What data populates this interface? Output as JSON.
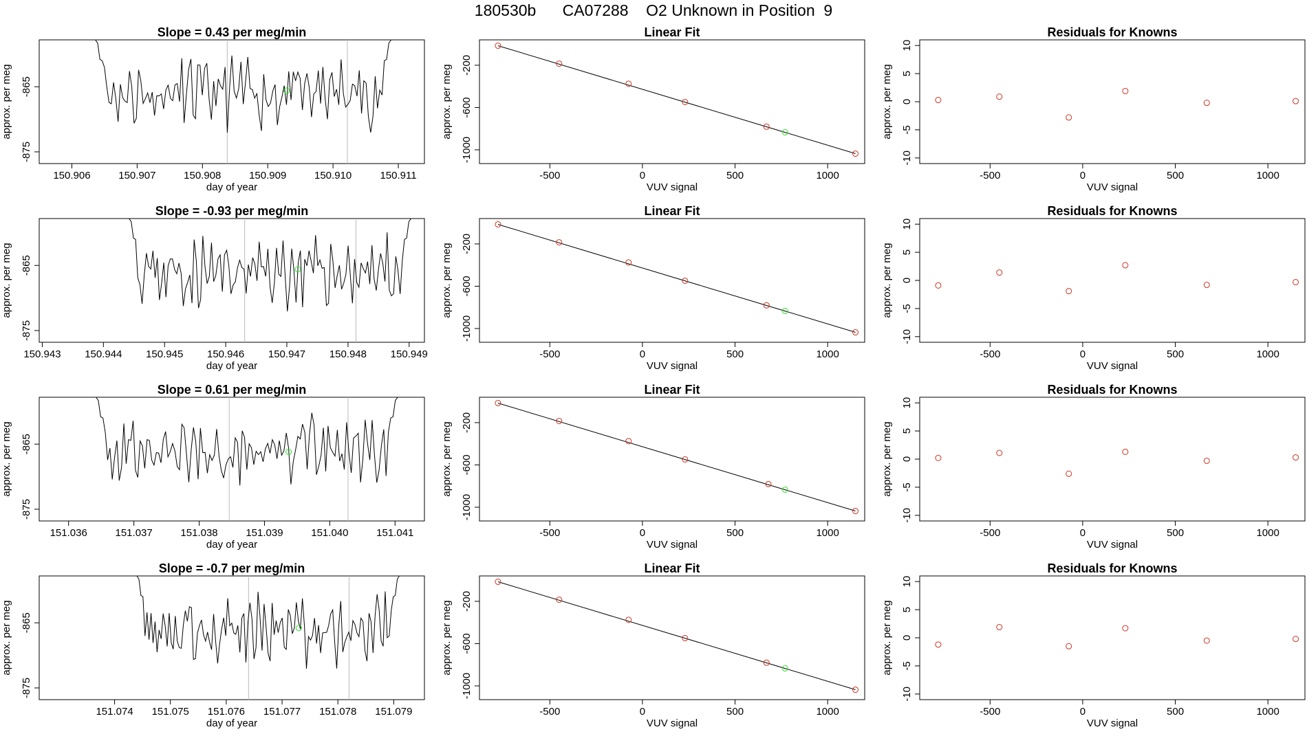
{
  "title": "180530b      CA07288    O2 Unknown in Position  9",
  "colors": {
    "known_point": "#cc3322",
    "unknown_point": "#33dd33",
    "line": "#000000",
    "vline": "#bbbbbb"
  },
  "chart_data": [
    {
      "type": "line",
      "title": "Slope =  0.43  per meg/min",
      "xlabel": "day of year",
      "ylabel": "approx. per meg",
      "xlim": [
        150.9055,
        150.9114
      ],
      "ylim": [
        -876.8,
        -857.8
      ],
      "xticks": [
        "150.906",
        "150.907",
        "150.908",
        "150.909",
        "150.910",
        "150.911"
      ],
      "yticks": [
        "-865",
        "-875"
      ],
      "ytick_values": [
        -865,
        -875
      ],
      "x_start": 150.90636,
      "x_end": 150.91089,
      "vlines": [
        150.90838,
        150.91022
      ],
      "unknown_point": [
        150.90929,
        -865.6
      ],
      "seed": 11
    },
    {
      "type": "line",
      "title": "Slope =  -0.93  per meg/min",
      "xlabel": "day of year",
      "ylabel": "approx. per meg",
      "xlim": [
        150.94295,
        150.94925
      ],
      "ylim": [
        -876.8,
        -857.8
      ],
      "xticks": [
        "150.943",
        "150.944",
        "150.945",
        "150.946",
        "150.947",
        "150.948",
        "150.949"
      ],
      "yticks": [
        "-865",
        "-875"
      ],
      "ytick_values": [
        -865,
        -875
      ],
      "x_start": 150.94442,
      "x_end": 150.94903,
      "vlines": [
        150.94631,
        150.94813
      ],
      "unknown_point": [
        150.94718,
        -865.6
      ],
      "seed": 23
    },
    {
      "type": "line",
      "title": "Slope =  0.61  per meg/min",
      "xlabel": "day of year",
      "ylabel": "approx. per meg",
      "xlim": [
        151.03555,
        151.04145
      ],
      "ylim": [
        -876.8,
        -857.8
      ],
      "xticks": [
        "151.036",
        "151.037",
        "151.038",
        "151.039",
        "151.040",
        "151.041"
      ],
      "yticks": [
        "-865",
        "-875"
      ],
      "ytick_values": [
        -865,
        -875
      ],
      "x_start": 151.03642,
      "x_end": 151.04104,
      "vlines": [
        151.03846,
        151.04028
      ],
      "unknown_point": [
        151.03937,
        -866.2
      ],
      "seed": 37
    },
    {
      "type": "line",
      "title": "Slope =  -0.7  per meg/min",
      "xlabel": "day of year",
      "ylabel": "approx. per meg",
      "xlim": [
        151.07265,
        151.07955
      ],
      "ylim": [
        -876.8,
        -857.8
      ],
      "xticks": [
        "151.074",
        "151.075",
        "151.076",
        "151.077",
        "151.078",
        "151.079"
      ],
      "yticks": [
        "-865",
        "-875"
      ],
      "ytick_values": [
        -865,
        -875
      ],
      "x_start": 151.0744,
      "x_end": 151.0791,
      "vlines": [
        151.0764,
        151.0782
      ],
      "unknown_point": [
        151.0773,
        -865.8
      ],
      "seed": 53
    },
    {
      "type": "scatter",
      "title": "Linear Fit",
      "xlabel": "VUV signal",
      "ylabel": "approx. per meg",
      "xlim": [
        -880,
        1200
      ],
      "ylim": [
        -1130,
        40
      ],
      "xticks": [
        "-500",
        "0",
        "500",
        "1000"
      ],
      "xtick_values": [
        -500,
        0,
        500,
        1000
      ],
      "yticks": [
        "-200",
        "-600",
        "-1000"
      ],
      "ytick_values": [
        -200,
        -600,
        -1000
      ],
      "known_x": [
        -780,
        -450,
        -75,
        230,
        670,
        1150
      ],
      "known_y": [
        -15,
        -185,
        -375,
        -548,
        -781,
        -1036
      ],
      "unknown": [
        770,
        -834
      ],
      "fit_line": [
        [
          -780,
          -15
        ],
        [
          1150,
          -1036
        ]
      ]
    },
    {
      "type": "scatter",
      "title": "Linear Fit",
      "xlabel": "VUV signal",
      "ylabel": "approx. per meg",
      "xlim": [
        -880,
        1200
      ],
      "ylim": [
        -1130,
        40
      ],
      "xticks": [
        "-500",
        "0",
        "500",
        "1000"
      ],
      "xtick_values": [
        -500,
        0,
        500,
        1000
      ],
      "yticks": [
        "-200",
        "-600",
        "-1000"
      ],
      "ytick_values": [
        -200,
        -600,
        -1000
      ],
      "known_x": [
        -780,
        -450,
        -75,
        230,
        670,
        1150
      ],
      "known_y": [
        -15,
        -185,
        -375,
        -548,
        -781,
        -1036
      ],
      "unknown": [
        770,
        -834
      ],
      "fit_line": [
        [
          -780,
          -15
        ],
        [
          1150,
          -1036
        ]
      ]
    },
    {
      "type": "scatter",
      "title": "Linear Fit",
      "xlabel": "VUV signal",
      "ylabel": "approx. per meg",
      "xlim": [
        -880,
        1200
      ],
      "ylim": [
        -1130,
        40
      ],
      "xticks": [
        "-500",
        "0",
        "500",
        "1000"
      ],
      "xtick_values": [
        -500,
        0,
        500,
        1000
      ],
      "yticks": [
        "-200",
        "-600",
        "-1000"
      ],
      "ytick_values": [
        -200,
        -600,
        -1000
      ],
      "known_x": [
        -780,
        -450,
        -75,
        230,
        680,
        1150
      ],
      "known_y": [
        -15,
        -185,
        -375,
        -548,
        -781,
        -1036
      ],
      "unknown": [
        770,
        -834
      ],
      "fit_line": [
        [
          -780,
          -15
        ],
        [
          1150,
          -1036
        ]
      ]
    },
    {
      "type": "scatter",
      "title": "Linear Fit",
      "xlabel": "VUV signal",
      "ylabel": "approx. per meg",
      "xlim": [
        -880,
        1200
      ],
      "ylim": [
        -1130,
        40
      ],
      "xticks": [
        "-500",
        "0",
        "500",
        "1000"
      ],
      "xtick_values": [
        -500,
        0,
        500,
        1000
      ],
      "yticks": [
        "-200",
        "-600",
        "-1000"
      ],
      "ytick_values": [
        -200,
        -600,
        -1000
      ],
      "known_x": [
        -780,
        -450,
        -75,
        230,
        670,
        1150
      ],
      "known_y": [
        -15,
        -185,
        -375,
        -548,
        -781,
        -1036
      ],
      "unknown": [
        770,
        -834
      ],
      "fit_line": [
        [
          -780,
          -15
        ],
        [
          1150,
          -1036
        ]
      ]
    },
    {
      "type": "scatter",
      "title": "Residuals for Knowns",
      "xlabel": "VUV signal",
      "ylabel": "approx. per meg",
      "xlim": [
        -880,
        1200
      ],
      "ylim": [
        -11,
        11
      ],
      "xticks": [
        "-500",
        "0",
        "500",
        "1000"
      ],
      "xtick_values": [
        -500,
        0,
        500,
        1000
      ],
      "yticks": [
        "10",
        "5",
        "0",
        "-5",
        "-10"
      ],
      "ytick_values": [
        10,
        5,
        0,
        -5,
        -10
      ],
      "x": [
        -780,
        -450,
        -75,
        230,
        670,
        1150
      ],
      "y": [
        0.3,
        0.9,
        -2.8,
        1.9,
        -0.2,
        0.1
      ]
    },
    {
      "type": "scatter",
      "title": "Residuals for Knowns",
      "xlabel": "VUV signal",
      "ylabel": "approx. per meg",
      "xlim": [
        -880,
        1200
      ],
      "ylim": [
        -11,
        11
      ],
      "xticks": [
        "-500",
        "0",
        "500",
        "1000"
      ],
      "xtick_values": [
        -500,
        0,
        500,
        1000
      ],
      "yticks": [
        "10",
        "5",
        "0",
        "-5",
        "-10"
      ],
      "ytick_values": [
        10,
        5,
        0,
        -5,
        -10
      ],
      "x": [
        -780,
        -450,
        -75,
        230,
        670,
        1150
      ],
      "y": [
        -0.9,
        1.4,
        -1.9,
        2.7,
        -0.8,
        -0.3
      ]
    },
    {
      "type": "scatter",
      "title": "Residuals for Knowns",
      "xlabel": "VUV signal",
      "ylabel": "approx. per meg",
      "xlim": [
        -880,
        1200
      ],
      "ylim": [
        -11,
        11
      ],
      "xticks": [
        "-500",
        "0",
        "500",
        "1000"
      ],
      "xtick_values": [
        -500,
        0,
        500,
        1000
      ],
      "yticks": [
        "10",
        "5",
        "0",
        "-5",
        "-10"
      ],
      "ytick_values": [
        10,
        5,
        0,
        -5,
        -10
      ],
      "x": [
        -780,
        -450,
        -75,
        230,
        670,
        1150
      ],
      "y": [
        0.2,
        1.1,
        -2.6,
        1.3,
        -0.3,
        0.3
      ]
    },
    {
      "type": "scatter",
      "title": "Residuals for Knowns",
      "xlabel": "VUV signal",
      "ylabel": "approx. per meg",
      "xlim": [
        -880,
        1200
      ],
      "ylim": [
        -11,
        11
      ],
      "xticks": [
        "-500",
        "0",
        "500",
        "1000"
      ],
      "xtick_values": [
        -500,
        0,
        500,
        1000
      ],
      "yticks": [
        "10",
        "5",
        "0",
        "-5",
        "-10"
      ],
      "ytick_values": [
        10,
        5,
        0,
        -5,
        -10
      ],
      "x": [
        -780,
        -450,
        -75,
        230,
        670,
        1150
      ],
      "y": [
        -1.2,
        1.9,
        -1.5,
        1.7,
        -0.5,
        -0.2
      ]
    }
  ]
}
